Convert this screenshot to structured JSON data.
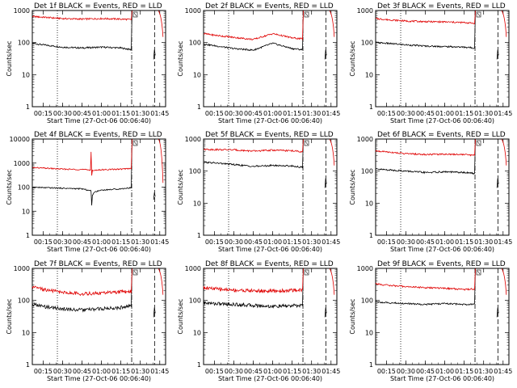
{
  "colors": {
    "events": "#000000",
    "lld": "#e00000",
    "background": "#ffffff"
  },
  "chart_data": [
    {
      "type": "line",
      "title": "Det 1f BLACK = Events, RED = LLD",
      "xlabel": "Start Time (27-Oct-06 00:06:40)",
      "ylabel": "Counts/sec",
      "yscale": "log",
      "ylim": [
        1,
        1000
      ],
      "xlim": [
        "00:06:40",
        "01:49:30"
      ],
      "x_ticks": [
        "00:15",
        "00:30",
        "00:45",
        "01:00",
        "01:15",
        "01:30",
        "01:45"
      ],
      "y_ticks": [
        "1",
        "10",
        "100",
        "1000"
      ],
      "grid": false,
      "series": [
        {
          "name": "Events",
          "color": "#000000",
          "x": [
            "00:06:40",
            "00:15:00",
            "00:30:00",
            "00:45:00",
            "01:00:00",
            "01:15:00",
            "01:23:00"
          ],
          "values": [
            95,
            85,
            72,
            68,
            72,
            68,
            60
          ]
        },
        {
          "name": "LLD",
          "color": "#e00000",
          "x": [
            "00:06:40",
            "00:15:00",
            "00:30:00",
            "00:45:00",
            "01:00:00",
            "01:15:00",
            "01:23:00"
          ],
          "values": [
            650,
            620,
            560,
            540,
            560,
            540,
            520
          ]
        }
      ]
    },
    {
      "type": "line",
      "title": "Det 2f BLACK = Events, RED = LLD",
      "xlabel": "Start Time (27-Oct-06 00:06:40)",
      "ylabel": "Counts/sec",
      "yscale": "log",
      "ylim": [
        1,
        1000
      ],
      "xlim": [
        "00:06:40",
        "01:49:30"
      ],
      "x_ticks": [
        "00:15",
        "00:30",
        "00:45",
        "01:00",
        "01:15",
        "01:30",
        "01:45"
      ],
      "y_ticks": [
        "1",
        "10",
        "100",
        "1000"
      ],
      "grid": false,
      "series": [
        {
          "name": "Events",
          "color": "#000000",
          "x": [
            "00:06:40",
            "00:15:00",
            "00:30:00",
            "00:45:00",
            "01:00:00",
            "01:15:00",
            "01:23:00"
          ],
          "values": [
            90,
            80,
            65,
            58,
            95,
            65,
            60
          ]
        },
        {
          "name": "LLD",
          "color": "#e00000",
          "x": [
            "00:06:40",
            "00:15:00",
            "00:30:00",
            "00:45:00",
            "01:00:00",
            "01:15:00",
            "01:23:00"
          ],
          "values": [
            190,
            170,
            145,
            125,
            190,
            140,
            130
          ]
        }
      ]
    },
    {
      "type": "line",
      "title": "Det 3f BLACK = Events, RED = LLD",
      "xlabel": "Start Time (27-Oct-06 00:06:40)",
      "ylabel": "Counts/sec",
      "yscale": "log",
      "ylim": [
        1,
        1000
      ],
      "xlim": [
        "00:06:40",
        "01:49:30"
      ],
      "x_ticks": [
        "00:15",
        "00:30",
        "00:45",
        "01:00",
        "01:15",
        "01:30",
        "01:45"
      ],
      "y_ticks": [
        "1",
        "10",
        "100",
        "1000"
      ],
      "grid": false,
      "series": [
        {
          "name": "Events",
          "color": "#000000",
          "x": [
            "00:06:40",
            "00:15:00",
            "00:30:00",
            "00:45:00",
            "01:00:00",
            "01:15:00",
            "01:23:00"
          ],
          "values": [
            100,
            95,
            85,
            78,
            75,
            72,
            68
          ]
        },
        {
          "name": "LLD",
          "color": "#e00000",
          "x": [
            "00:06:40",
            "00:15:00",
            "00:30:00",
            "00:45:00",
            "01:00:00",
            "01:15:00",
            "01:23:00"
          ],
          "values": [
            560,
            520,
            470,
            450,
            440,
            420,
            400
          ]
        }
      ]
    },
    {
      "type": "line",
      "title": "Det 4f BLACK = Events, RED = LLD",
      "xlabel": "Start Time (27-Oct-06 00:06:40)",
      "ylabel": "Counts/sec",
      "yscale": "log",
      "ylim": [
        1,
        10000
      ],
      "xlim": [
        "00:06:40",
        "01:49:30"
      ],
      "x_ticks": [
        "00:15",
        "00:30",
        "00:45",
        "01:00",
        "01:15",
        "01:30",
        "01:45"
      ],
      "y_ticks": [
        "1",
        "10",
        "100",
        "1000",
        "10000"
      ],
      "grid": false,
      "series": [
        {
          "name": "Events",
          "color": "#000000",
          "x": [
            "00:06:40",
            "00:15:00",
            "00:30:00",
            "00:45:00",
            "00:52:00",
            "00:52:30",
            "00:53:00",
            "00:54:00",
            "01:00:00",
            "01:15:00",
            "01:23:00"
          ],
          "values": [
            100,
            95,
            90,
            85,
            70,
            18,
            45,
            60,
            75,
            85,
            95
          ]
        },
        {
          "name": "LLD",
          "color": "#e00000",
          "x": [
            "00:06:40",
            "00:15:00",
            "00:30:00",
            "00:45:00",
            "00:51:30",
            "00:52:00",
            "00:52:30",
            "00:53:00",
            "01:00:00",
            "01:15:00",
            "01:23:00"
          ],
          "values": [
            650,
            620,
            560,
            540,
            520,
            2800,
            300,
            500,
            530,
            560,
            600
          ]
        }
      ]
    },
    {
      "type": "line",
      "title": "Det 5f BLACK = Events, RED = LLD",
      "xlabel": "Start Time (27-Oct-06 00:06:40)",
      "ylabel": "Counts/sec",
      "yscale": "log",
      "ylim": [
        1,
        1000
      ],
      "xlim": [
        "00:06:40",
        "01:49:30"
      ],
      "x_ticks": [
        "00:15",
        "00:30",
        "00:45",
        "01:00",
        "01:15",
        "01:30",
        "01:45"
      ],
      "y_ticks": [
        "1",
        "10",
        "100",
        "1000"
      ],
      "grid": false,
      "series": [
        {
          "name": "Events",
          "color": "#000000",
          "x": [
            "00:06:40",
            "00:15:00",
            "00:30:00",
            "00:45:00",
            "01:00:00",
            "01:15:00",
            "01:23:00"
          ],
          "values": [
            190,
            180,
            160,
            140,
            150,
            145,
            130
          ]
        },
        {
          "name": "LLD",
          "color": "#e00000",
          "x": [
            "00:06:40",
            "00:15:00",
            "00:30:00",
            "00:45:00",
            "01:00:00",
            "01:15:00",
            "01:23:00"
          ],
          "values": [
            480,
            470,
            460,
            420,
            450,
            430,
            400
          ]
        }
      ]
    },
    {
      "type": "line",
      "title": "Det 6f BLACK = Events, RED = LLD",
      "xlabel": "Start Time (27-Oct-06 00:06:40)",
      "ylabel": "Counts/sec",
      "yscale": "log",
      "ylim": [
        1,
        1000
      ],
      "xlim": [
        "00:06:40",
        "01:49:30"
      ],
      "x_ticks": [
        "00:15",
        "00:30",
        "00:45",
        "01:00",
        "01:15",
        "01:30",
        "01:45"
      ],
      "y_ticks": [
        "1",
        "10",
        "100",
        "1000"
      ],
      "grid": false,
      "series": [
        {
          "name": "Events",
          "color": "#000000",
          "x": [
            "00:06:40",
            "00:15:00",
            "00:30:00",
            "00:45:00",
            "01:00:00",
            "01:15:00",
            "01:23:00"
          ],
          "values": [
            115,
            110,
            100,
            90,
            95,
            90,
            85
          ]
        },
        {
          "name": "LLD",
          "color": "#e00000",
          "x": [
            "00:06:40",
            "00:15:00",
            "00:30:00",
            "00:45:00",
            "01:00:00",
            "01:15:00",
            "01:23:00"
          ],
          "values": [
            420,
            400,
            350,
            330,
            340,
            330,
            310
          ]
        }
      ]
    },
    {
      "type": "line",
      "title": "Det 7f BLACK = Events, RED = LLD",
      "xlabel": "Start Time (27-Oct-06 00:06:40)",
      "ylabel": "Counts/sec",
      "yscale": "log",
      "ylim": [
        1,
        1000
      ],
      "xlim": [
        "00:06:40",
        "01:49:30"
      ],
      "x_ticks": [
        "00:15",
        "00:30",
        "00:45",
        "01:00",
        "01:15",
        "01:30",
        "01:45"
      ],
      "y_ticks": [
        "1",
        "10",
        "100",
        "1000"
      ],
      "grid": false,
      "series": [
        {
          "name": "Events",
          "color": "#000000",
          "x": [
            "00:06:40",
            "00:15:00",
            "00:30:00",
            "00:45:00",
            "01:00:00",
            "01:15:00",
            "01:23:00"
          ],
          "values": [
            75,
            65,
            55,
            50,
            55,
            60,
            70
          ]
        },
        {
          "name": "LLD",
          "color": "#e00000",
          "x": [
            "00:06:40",
            "00:15:00",
            "00:30:00",
            "00:45:00",
            "01:00:00",
            "01:15:00",
            "01:23:00"
          ],
          "values": [
            260,
            220,
            180,
            160,
            170,
            185,
            190
          ]
        }
      ]
    },
    {
      "type": "line",
      "title": "Det 8f BLACK = Events, RED = LLD",
      "xlabel": "Start Time (27-Oct-06 00:06:40)",
      "ylabel": "Counts/sec",
      "yscale": "log",
      "ylim": [
        1,
        1000
      ],
      "xlim": [
        "00:06:40",
        "01:49:30"
      ],
      "x_ticks": [
        "00:15",
        "00:30",
        "00:45",
        "01:00",
        "01:15",
        "01:30",
        "01:45"
      ],
      "y_ticks": [
        "1",
        "10",
        "100",
        "1000"
      ],
      "grid": false,
      "series": [
        {
          "name": "Events",
          "color": "#000000",
          "x": [
            "00:06:40",
            "00:15:00",
            "00:30:00",
            "00:45:00",
            "01:00:00",
            "01:15:00",
            "01:23:00"
          ],
          "values": [
            85,
            80,
            75,
            70,
            65,
            68,
            70
          ]
        },
        {
          "name": "LLD",
          "color": "#e00000",
          "x": [
            "00:06:40",
            "00:15:00",
            "00:30:00",
            "00:45:00",
            "01:00:00",
            "01:15:00",
            "01:23:00"
          ],
          "values": [
            250,
            230,
            210,
            200,
            195,
            205,
            215
          ]
        }
      ]
    },
    {
      "type": "line",
      "title": "Det 9f BLACK = Events, RED = LLD",
      "xlabel": "Start Time (27-Oct-06 00:06:40)",
      "ylabel": "Counts/sec",
      "yscale": "log",
      "ylim": [
        1,
        1000
      ],
      "xlim": [
        "00:06:40",
        "01:49:30"
      ],
      "x_ticks": [
        "00:15",
        "00:30",
        "00:45",
        "01:00",
        "01:15",
        "01:30",
        "01:45"
      ],
      "y_ticks": [
        "1",
        "10",
        "100",
        "1000"
      ],
      "grid": false,
      "series": [
        {
          "name": "Events",
          "color": "#000000",
          "x": [
            "00:06:40",
            "00:15:00",
            "00:30:00",
            "00:45:00",
            "01:00:00",
            "01:15:00",
            "01:23:00"
          ],
          "values": [
            90,
            85,
            80,
            75,
            80,
            75,
            78
          ]
        },
        {
          "name": "LLD",
          "color": "#e00000",
          "x": [
            "00:06:40",
            "00:15:00",
            "00:30:00",
            "00:45:00",
            "01:00:00",
            "01:15:00",
            "01:23:00"
          ],
          "values": [
            330,
            300,
            270,
            250,
            240,
            220,
            230
          ]
        }
      ]
    }
  ]
}
